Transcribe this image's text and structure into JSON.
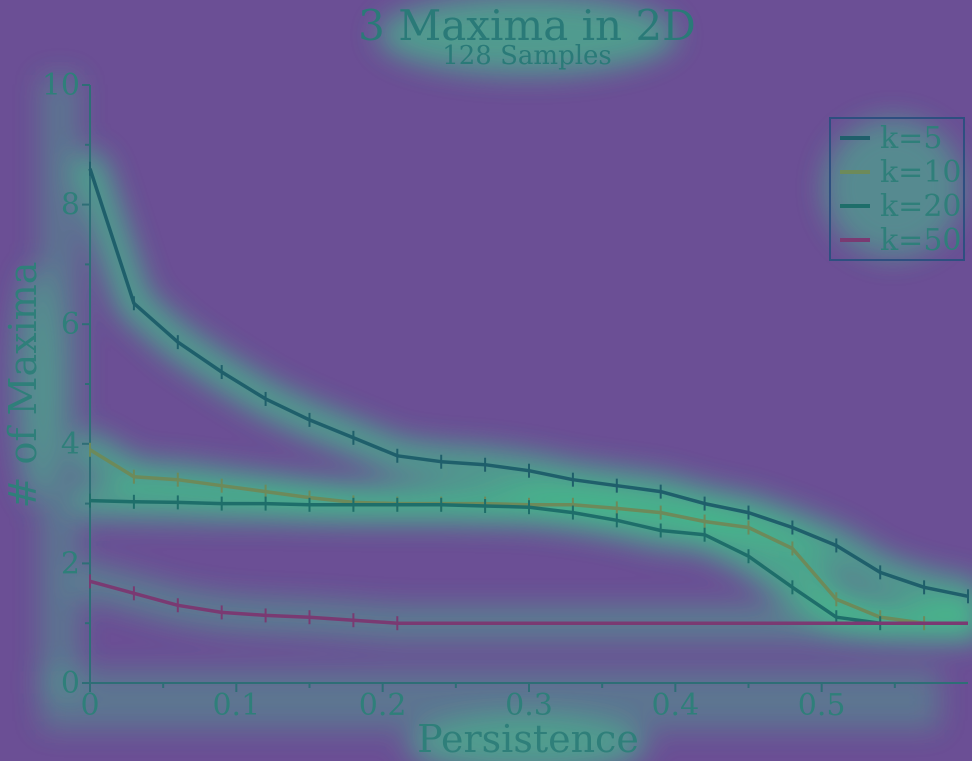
{
  "chart_data": {
    "type": "line",
    "title": "3 Maxima in 2D",
    "subtitle": "128 Samples",
    "xlabel": "Persistence",
    "ylabel": "# of Maxima",
    "xlim": [
      0,
      0.6
    ],
    "ylim": [
      0,
      10
    ],
    "xticks": [
      0,
      0.1,
      0.2,
      0.3,
      0.4,
      0.5
    ],
    "xtick_labels": [
      "0",
      "0.1",
      "0.2",
      "0.3",
      "0.4",
      "0.5"
    ],
    "yticks": [
      0,
      2,
      4,
      6,
      8,
      10
    ],
    "ytick_labels": [
      "0",
      "2",
      "4",
      "6",
      "8",
      "10"
    ],
    "legend_position": "top-right",
    "grid": false,
    "series": [
      {
        "name": "k=5",
        "color": "#1f5f6b",
        "x": [
          0,
          0.03,
          0.06,
          0.09,
          0.12,
          0.15,
          0.18,
          0.21,
          0.24,
          0.27,
          0.3,
          0.33,
          0.36,
          0.39,
          0.42,
          0.45,
          0.48,
          0.51,
          0.54,
          0.57,
          0.6
        ],
        "y": [
          8.6,
          6.35,
          5.7,
          5.2,
          4.75,
          4.4,
          4.1,
          3.8,
          3.7,
          3.65,
          3.55,
          3.4,
          3.3,
          3.2,
          3.0,
          2.85,
          2.6,
          2.3,
          1.85,
          1.6,
          1.45
        ]
      },
      {
        "name": "k=10",
        "color": "#6d8a5a",
        "x": [
          0,
          0.03,
          0.06,
          0.09,
          0.12,
          0.15,
          0.18,
          0.21,
          0.24,
          0.27,
          0.3,
          0.33,
          0.36,
          0.39,
          0.42,
          0.45,
          0.48,
          0.51,
          0.54,
          0.57,
          0.6
        ],
        "y": [
          3.9,
          3.45,
          3.4,
          3.3,
          3.2,
          3.1,
          3.02,
          3.0,
          3.0,
          3.0,
          2.98,
          2.98,
          2.92,
          2.85,
          2.7,
          2.6,
          2.25,
          1.4,
          1.1,
          1.0,
          1.0
        ]
      },
      {
        "name": "k=20",
        "color": "#1e6e6a",
        "x": [
          0,
          0.03,
          0.06,
          0.09,
          0.12,
          0.15,
          0.18,
          0.21,
          0.24,
          0.27,
          0.3,
          0.33,
          0.36,
          0.39,
          0.42,
          0.45,
          0.48,
          0.51,
          0.54,
          0.57,
          0.6
        ],
        "y": [
          3.05,
          3.03,
          3.02,
          3.0,
          3.0,
          2.98,
          2.98,
          2.98,
          2.98,
          2.96,
          2.94,
          2.85,
          2.72,
          2.55,
          2.48,
          2.12,
          1.6,
          1.1,
          1.0,
          1.0,
          1.0
        ]
      },
      {
        "name": "k=50",
        "color": "#7a3a72",
        "x": [
          0,
          0.03,
          0.06,
          0.09,
          0.12,
          0.15,
          0.18,
          0.21,
          0.24,
          0.27,
          0.3,
          0.33,
          0.36,
          0.39,
          0.42,
          0.45,
          0.48,
          0.51,
          0.54,
          0.57,
          0.6
        ],
        "y": [
          1.7,
          1.5,
          1.3,
          1.18,
          1.13,
          1.1,
          1.05,
          1.0,
          1.0,
          1.0,
          1.0,
          1.0,
          1.0,
          1.0,
          1.0,
          1.0,
          1.0,
          1.0,
          1.0,
          1.0,
          1.0
        ]
      }
    ]
  }
}
